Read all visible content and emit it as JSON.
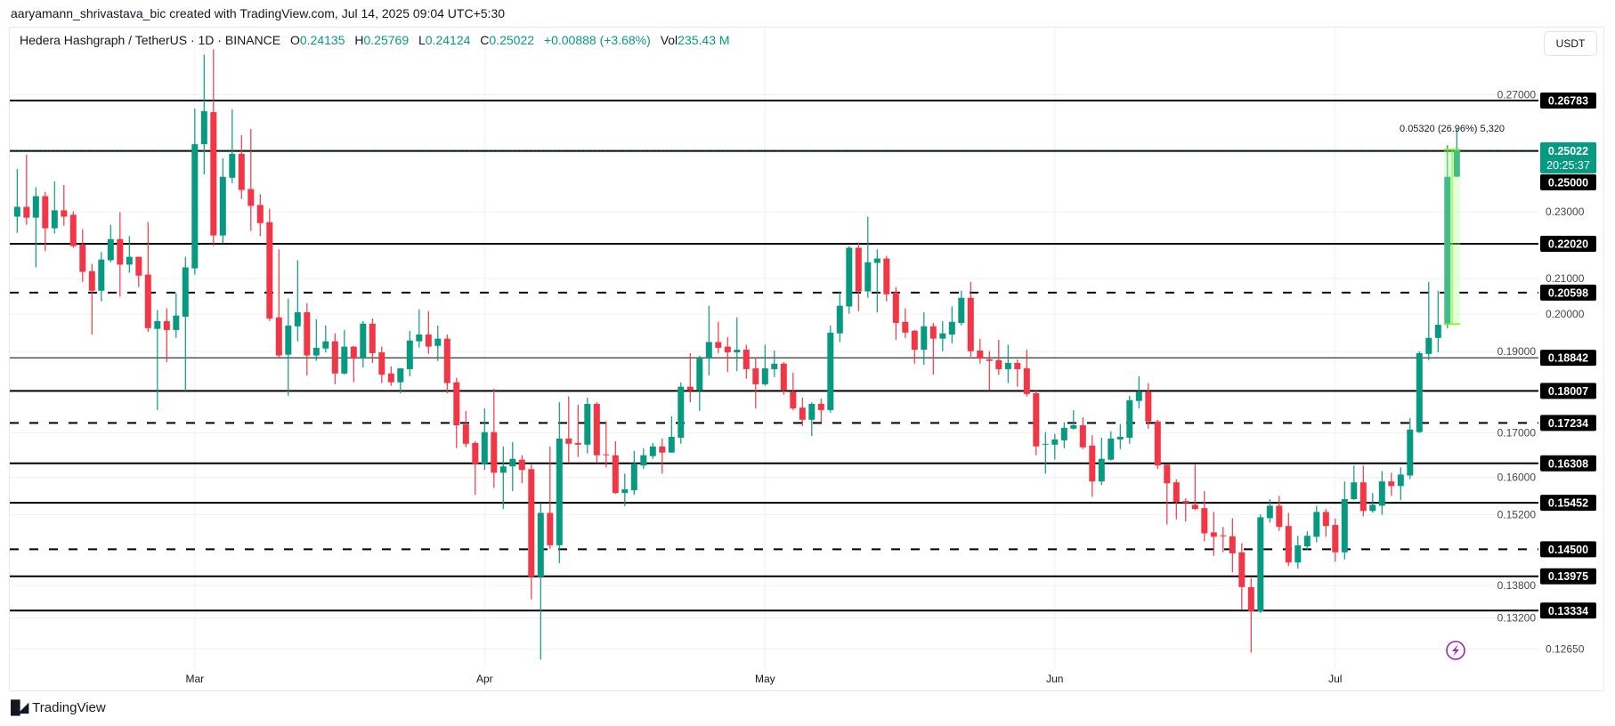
{
  "watermark": "aaryamann_shrivastava_bic created with TradingView.com, Jul 14, 2025 09:04 UTC+5:30",
  "legend": {
    "symbol": "Hedera Hashgraph / TetherUS · 1D · BINANCE",
    "o_label": "O",
    "o": "0.24135",
    "h_label": "H",
    "h": "0.25769",
    "l_label": "L",
    "l": "0.24124",
    "c_label": "C",
    "c": "0.25022",
    "change": "+0.00888 (+3.68%)",
    "vol_label": "Vol",
    "vol": "235.43 M"
  },
  "currency_button": "USDT",
  "footer_logo": "TradingView",
  "colors": {
    "up": "#089981",
    "down": "#f23645",
    "level": "#000000",
    "price_line": "#089981",
    "measure": "#7cfc00",
    "alert_icon": "#9c27b0"
  },
  "icons": {
    "alert": "lightning-bolt-icon",
    "logo": "tradingview-logo-icon"
  },
  "chart_data": {
    "type": "candlestick",
    "scale": "log",
    "grid": true,
    "xlabels": [
      {
        "label": "Mar",
        "date": "2025-03-01"
      },
      {
        "label": "Apr",
        "date": "2025-04-01"
      },
      {
        "label": "May",
        "date": "2025-05-01"
      },
      {
        "label": "Jun",
        "date": "2025-06-01"
      },
      {
        "label": "Jul",
        "date": "2025-07-01"
      }
    ],
    "ytick_labels": [
      "0.27000",
      "0.23000",
      "0.21000",
      "0.20000",
      "0.19000",
      "0.17000",
      "0.16000",
      "0.15200",
      "0.13800",
      "0.13200",
      "0.12650"
    ],
    "current_price": {
      "value": "0.25022",
      "countdown": "20:25:37"
    },
    "levels": [
      {
        "value": "0.26783",
        "line": "solid"
      },
      {
        "value": "0.25000",
        "line": "solid"
      },
      {
        "value": "0.22020",
        "line": "solid"
      },
      {
        "value": "0.20598",
        "line": "dashed"
      },
      {
        "value": "0.18842",
        "line": "thin"
      },
      {
        "value": "0.18007",
        "line": "solid"
      },
      {
        "value": "0.17234",
        "line": "dashed"
      },
      {
        "value": "0.16308",
        "line": "solid"
      },
      {
        "value": "0.15452",
        "line": "solid"
      },
      {
        "value": "0.14500",
        "line": "dashed"
      },
      {
        "value": "0.13975",
        "line": "solid"
      },
      {
        "value": "0.13334",
        "line": "solid"
      }
    ],
    "measure": {
      "label": "0.05320 (26.96%) 5,320",
      "from": 0.1973,
      "to": 0.2505,
      "start_date": "2025-07-13",
      "end_date": "2025-07-14"
    },
    "columns": [
      "date",
      "open",
      "high",
      "low",
      "close"
    ],
    "candles": [
      [
        "2025-02-10",
        0.2285,
        0.2439,
        0.2235,
        0.2316
      ],
      [
        "2025-02-11",
        0.2316,
        0.2487,
        0.226,
        0.2282
      ],
      [
        "2025-02-12",
        0.2282,
        0.2379,
        0.2132,
        0.235
      ],
      [
        "2025-02-13",
        0.235,
        0.2364,
        0.218,
        0.2249
      ],
      [
        "2025-02-14",
        0.2249,
        0.2398,
        0.2233,
        0.2305
      ],
      [
        "2025-02-15",
        0.2305,
        0.2386,
        0.2257,
        0.2285
      ],
      [
        "2025-02-16",
        0.2291,
        0.2302,
        0.219,
        0.2195
      ],
      [
        "2025-02-17",
        0.22,
        0.2246,
        0.209,
        0.2119
      ],
      [
        "2025-02-18",
        0.2121,
        0.2142,
        0.1945,
        0.2065
      ],
      [
        "2025-02-19",
        0.2065,
        0.2177,
        0.2035,
        0.2155
      ],
      [
        "2025-02-20",
        0.2153,
        0.226,
        0.2147,
        0.2216
      ],
      [
        "2025-02-21",
        0.2216,
        0.2299,
        0.2048,
        0.214
      ],
      [
        "2025-02-22",
        0.214,
        0.2225,
        0.2116,
        0.2163
      ],
      [
        "2025-02-23",
        0.2163,
        0.2163,
        0.2075,
        0.2108
      ],
      [
        "2025-02-24",
        0.2111,
        0.2268,
        0.1952,
        0.1962
      ],
      [
        "2025-02-25",
        0.196,
        0.2011,
        0.1754,
        0.1981
      ],
      [
        "2025-02-26",
        0.1981,
        0.2016,
        0.1873,
        0.1957
      ],
      [
        "2025-02-27",
        0.1957,
        0.2058,
        0.1936,
        0.1996
      ],
      [
        "2025-02-28",
        0.1993,
        0.2163,
        0.18,
        0.2132
      ],
      [
        "2025-03-01",
        0.2129,
        0.2649,
        0.2111,
        0.2523
      ],
      [
        "2025-03-02",
        0.2523,
        0.2852,
        0.2421,
        0.264
      ],
      [
        "2025-03-03",
        0.2636,
        0.2873,
        0.2195,
        0.2227
      ],
      [
        "2025-03-04",
        0.2227,
        0.2475,
        0.2203,
        0.2413
      ],
      [
        "2025-03-05",
        0.241,
        0.2646,
        0.2392,
        0.249
      ],
      [
        "2025-03-06",
        0.249,
        0.2554,
        0.2341,
        0.237
      ],
      [
        "2025-03-07",
        0.2373,
        0.2576,
        0.2241,
        0.2319
      ],
      [
        "2025-03-08",
        0.2322,
        0.2356,
        0.2225,
        0.2265
      ],
      [
        "2025-03-09",
        0.2268,
        0.231,
        0.1981,
        0.1988
      ],
      [
        "2025-03-10",
        0.1991,
        0.2185,
        0.1882,
        0.189
      ],
      [
        "2025-03-11",
        0.1892,
        0.2043,
        0.1789,
        0.1969
      ],
      [
        "2025-03-12",
        0.1967,
        0.2153,
        0.1927,
        0.2005
      ],
      [
        "2025-03-13",
        0.2005,
        0.203,
        0.1839,
        0.189
      ],
      [
        "2025-03-14",
        0.189,
        0.1986,
        0.1876,
        0.191
      ],
      [
        "2025-03-15",
        0.1908,
        0.1969,
        0.1898,
        0.1927
      ],
      [
        "2025-03-16",
        0.1927,
        0.1948,
        0.1817,
        0.1844
      ],
      [
        "2025-03-17",
        0.1844,
        0.1957,
        0.1841,
        0.1913
      ],
      [
        "2025-03-18",
        0.1913,
        0.1915,
        0.1822,
        0.1882
      ],
      [
        "2025-03-19",
        0.1882,
        0.1981,
        0.1859,
        0.1974
      ],
      [
        "2025-03-20",
        0.1974,
        0.1988,
        0.1871,
        0.1896
      ],
      [
        "2025-03-21",
        0.1898,
        0.1913,
        0.182,
        0.1841
      ],
      [
        "2025-03-22",
        0.1844,
        0.1862,
        0.1813,
        0.1822
      ],
      [
        "2025-03-23",
        0.1822,
        0.1857,
        0.1795,
        0.1857
      ],
      [
        "2025-03-24",
        0.1855,
        0.1955,
        0.1837,
        0.1929
      ],
      [
        "2025-03-25",
        0.1927,
        0.2013,
        0.191,
        0.1945
      ],
      [
        "2025-03-26",
        0.1945,
        0.2008,
        0.1894,
        0.1913
      ],
      [
        "2025-03-27",
        0.1915,
        0.1969,
        0.1876,
        0.1934
      ],
      [
        "2025-03-28",
        0.1934,
        0.1945,
        0.1795,
        0.182
      ],
      [
        "2025-03-29",
        0.1822,
        0.1833,
        0.1665,
        0.1718
      ],
      [
        "2025-03-30",
        0.172,
        0.1752,
        0.1667,
        0.1675
      ],
      [
        "2025-03-31",
        0.1677,
        0.1681,
        0.1562,
        0.163
      ],
      [
        "2025-04-01",
        0.163,
        0.1758,
        0.1616,
        0.1702
      ],
      [
        "2025-04-02",
        0.1702,
        0.1806,
        0.1577,
        0.161
      ],
      [
        "2025-04-03",
        0.161,
        0.1669,
        0.1532,
        0.1624
      ],
      [
        "2025-04-04",
        0.1624,
        0.1679,
        0.157,
        0.1641
      ],
      [
        "2025-04-05",
        0.1639,
        0.1649,
        0.1587,
        0.1616
      ],
      [
        "2025-04-06",
        0.1618,
        0.1628,
        0.1354,
        0.1397
      ],
      [
        "2025-04-07",
        0.1397,
        0.1543,
        0.1247,
        0.1524
      ],
      [
        "2025-04-08",
        0.1524,
        0.1669,
        0.1451,
        0.1458
      ],
      [
        "2025-04-09",
        0.1458,
        0.1773,
        0.1423,
        0.1687
      ],
      [
        "2025-04-10",
        0.1687,
        0.1787,
        0.1634,
        0.1675
      ],
      [
        "2025-04-11",
        0.1677,
        0.1767,
        0.1645,
        0.1673
      ],
      [
        "2025-04-12",
        0.1673,
        0.1784,
        0.1653,
        0.1769
      ],
      [
        "2025-04-13",
        0.1769,
        0.1773,
        0.1632,
        0.1649
      ],
      [
        "2025-04-14",
        0.1651,
        0.1727,
        0.1622,
        0.1649
      ],
      [
        "2025-04-15",
        0.1649,
        0.1681,
        0.1564,
        0.1566
      ],
      [
        "2025-04-16",
        0.1566,
        0.1608,
        0.1538,
        0.1574
      ],
      [
        "2025-04-17",
        0.1572,
        0.1659,
        0.1562,
        0.163
      ],
      [
        "2025-04-18",
        0.1626,
        0.1665,
        0.1618,
        0.1649
      ],
      [
        "2025-04-19",
        0.1647,
        0.1677,
        0.1641,
        0.1669
      ],
      [
        "2025-04-20",
        0.1669,
        0.1687,
        0.1608,
        0.1655
      ],
      [
        "2025-04-21",
        0.1655,
        0.1739,
        0.1655,
        0.1691
      ],
      [
        "2025-04-22",
        0.1689,
        0.1822,
        0.1675,
        0.1811
      ],
      [
        "2025-04-23",
        0.1811,
        0.1896,
        0.1773,
        0.1802
      ],
      [
        "2025-04-24",
        0.1802,
        0.189,
        0.1752,
        0.1882
      ],
      [
        "2025-04-25",
        0.1882,
        0.2023,
        0.1839,
        0.1925
      ],
      [
        "2025-04-26",
        0.1925,
        0.1979,
        0.1896,
        0.191
      ],
      [
        "2025-04-27",
        0.1913,
        0.1938,
        0.1848,
        0.1898
      ],
      [
        "2025-04-28",
        0.1898,
        0.1991,
        0.185,
        0.1905
      ],
      [
        "2025-04-29",
        0.1905,
        0.1918,
        0.1831,
        0.1855
      ],
      [
        "2025-04-30",
        0.1857,
        0.1885,
        0.1758,
        0.1817
      ],
      [
        "2025-05-01",
        0.1817,
        0.1918,
        0.1813,
        0.1857
      ],
      [
        "2025-05-02",
        0.1855,
        0.1903,
        0.1835,
        0.1869
      ],
      [
        "2025-05-03",
        0.1869,
        0.1873,
        0.1791,
        0.1802
      ],
      [
        "2025-05-04",
        0.1798,
        0.1846,
        0.1754,
        0.1758
      ],
      [
        "2025-05-05",
        0.176,
        0.1784,
        0.1716,
        0.1731
      ],
      [
        "2025-05-06",
        0.1731,
        0.1773,
        0.1693,
        0.1769
      ],
      [
        "2025-05-07",
        0.1769,
        0.1782,
        0.1725,
        0.1754
      ],
      [
        "2025-05-08",
        0.1754,
        0.1969,
        0.1748,
        0.195
      ],
      [
        "2025-05-09",
        0.1948,
        0.2063,
        0.1925,
        0.2023
      ],
      [
        "2025-05-10",
        0.2021,
        0.2195,
        0.2001,
        0.219
      ],
      [
        "2025-05-11",
        0.219,
        0.2206,
        0.2008,
        0.2063
      ],
      [
        "2025-05-12",
        0.2063,
        0.2285,
        0.2045,
        0.2147
      ],
      [
        "2025-05-13",
        0.2145,
        0.2185,
        0.2005,
        0.2158
      ],
      [
        "2025-05-14",
        0.2158,
        0.2166,
        0.2035,
        0.2055
      ],
      [
        "2025-05-15",
        0.206,
        0.2075,
        0.1931,
        0.1976
      ],
      [
        "2025-05-16",
        0.1979,
        0.2016,
        0.1936,
        0.195
      ],
      [
        "2025-05-17",
        0.1955,
        0.1957,
        0.1869,
        0.1905
      ],
      [
        "2025-05-18",
        0.1905,
        0.2005,
        0.1866,
        0.1967
      ],
      [
        "2025-05-19",
        0.1967,
        0.1976,
        0.1841,
        0.1934
      ],
      [
        "2025-05-20",
        0.1934,
        0.1981,
        0.1901,
        0.1948
      ],
      [
        "2025-05-21",
        0.1945,
        0.2021,
        0.1922,
        0.1979
      ],
      [
        "2025-05-22",
        0.1976,
        0.2065,
        0.1969,
        0.2045
      ],
      [
        "2025-05-23",
        0.2045,
        0.209,
        0.1887,
        0.1901
      ],
      [
        "2025-05-24",
        0.1903,
        0.1934,
        0.1869,
        0.1882
      ],
      [
        "2025-05-25",
        0.188,
        0.1901,
        0.1802,
        0.1876
      ],
      [
        "2025-05-26",
        0.1878,
        0.1931,
        0.1841,
        0.1855
      ],
      [
        "2025-05-27",
        0.1855,
        0.1918,
        0.182,
        0.1871
      ],
      [
        "2025-05-28",
        0.1871,
        0.188,
        0.1811,
        0.1855
      ],
      [
        "2025-05-29",
        0.1857,
        0.1905,
        0.1787,
        0.1793
      ],
      [
        "2025-05-30",
        0.1795,
        0.1804,
        0.1649,
        0.1669
      ],
      [
        "2025-05-31",
        0.1673,
        0.1702,
        0.1608,
        0.1675
      ],
      [
        "2025-06-01",
        0.1673,
        0.1698,
        0.1639,
        0.1685
      ],
      [
        "2025-06-02",
        0.1683,
        0.1725,
        0.1665,
        0.1712
      ],
      [
        "2025-06-03",
        0.171,
        0.1754,
        0.1708,
        0.1718
      ],
      [
        "2025-06-04",
        0.1718,
        0.1737,
        0.1663,
        0.1667
      ],
      [
        "2025-06-05",
        0.1671,
        0.1695,
        0.1558,
        0.1591
      ],
      [
        "2025-06-06",
        0.1591,
        0.1689,
        0.1583,
        0.1641
      ],
      [
        "2025-06-07",
        0.1639,
        0.1704,
        0.1637,
        0.1687
      ],
      [
        "2025-06-08",
        0.1685,
        0.1721,
        0.1663,
        0.1691
      ],
      [
        "2025-06-09",
        0.1689,
        0.1789,
        0.1675,
        0.1778
      ],
      [
        "2025-06-10",
        0.1776,
        0.1837,
        0.1758,
        0.1798
      ],
      [
        "2025-06-11",
        0.1798,
        0.182,
        0.171,
        0.1727
      ],
      [
        "2025-06-12",
        0.1727,
        0.1731,
        0.1618,
        0.1626
      ],
      [
        "2025-06-13",
        0.1628,
        0.1628,
        0.15,
        0.1587
      ],
      [
        "2025-06-14",
        0.1589,
        0.1596,
        0.1511,
        0.1547
      ],
      [
        "2025-06-15",
        0.1549,
        0.1555,
        0.1506,
        0.1545
      ],
      [
        "2025-06-16",
        0.1541,
        0.1628,
        0.153,
        0.1532
      ],
      [
        "2025-06-17",
        0.1534,
        0.157,
        0.1466,
        0.1482
      ],
      [
        "2025-06-18",
        0.1484,
        0.1526,
        0.1437,
        0.1475
      ],
      [
        "2025-06-19",
        0.1478,
        0.1495,
        0.1444,
        0.1476
      ],
      [
        "2025-06-20",
        0.1476,
        0.1513,
        0.1405,
        0.1442
      ],
      [
        "2025-06-21",
        0.1444,
        0.1462,
        0.1335,
        0.1377
      ],
      [
        "2025-06-22",
        0.1377,
        0.1394,
        0.1259,
        0.1332
      ],
      [
        "2025-06-23",
        0.1332,
        0.1521,
        0.1329,
        0.1515
      ],
      [
        "2025-06-24",
        0.1513,
        0.1553,
        0.1504,
        0.1539
      ],
      [
        "2025-06-25",
        0.1539,
        0.156,
        0.1487,
        0.1495
      ],
      [
        "2025-06-26",
        0.1497,
        0.1524,
        0.1417,
        0.1424
      ],
      [
        "2025-06-27",
        0.1424,
        0.1477,
        0.1412,
        0.1458
      ],
      [
        "2025-06-28",
        0.1456,
        0.1486,
        0.1449,
        0.1477
      ],
      [
        "2025-06-29",
        0.1475,
        0.1539,
        0.1464,
        0.1526
      ],
      [
        "2025-06-30",
        0.1526,
        0.1532,
        0.1475,
        0.1497
      ],
      [
        "2025-07-01",
        0.1499,
        0.1512,
        0.1426,
        0.1444
      ],
      [
        "2025-07-02",
        0.1444,
        0.1591,
        0.143,
        0.1553
      ],
      [
        "2025-07-03",
        0.1553,
        0.1626,
        0.1551,
        0.1589
      ],
      [
        "2025-07-04",
        0.1589,
        0.1626,
        0.1517,
        0.1528
      ],
      [
        "2025-07-05",
        0.1528,
        0.1566,
        0.1524,
        0.1541
      ],
      [
        "2025-07-06",
        0.1539,
        0.1614,
        0.152,
        0.1591
      ],
      [
        "2025-07-07",
        0.1591,
        0.161,
        0.156,
        0.1581
      ],
      [
        "2025-07-08",
        0.1581,
        0.1622,
        0.1551,
        0.1606
      ],
      [
        "2025-07-09",
        0.1604,
        0.1735,
        0.1596,
        0.1708
      ],
      [
        "2025-07-10",
        0.1702,
        0.1901,
        0.17,
        0.1896
      ],
      [
        "2025-07-11",
        0.1894,
        0.209,
        0.1878,
        0.1936
      ],
      [
        "2025-07-12",
        0.1936,
        0.2065,
        0.1898,
        0.1971
      ],
      [
        "2025-07-13",
        0.1971,
        0.252,
        0.1962,
        0.2413
      ],
      [
        "2025-07-14",
        0.24135,
        0.25769,
        0.24124,
        0.25022
      ]
    ]
  }
}
